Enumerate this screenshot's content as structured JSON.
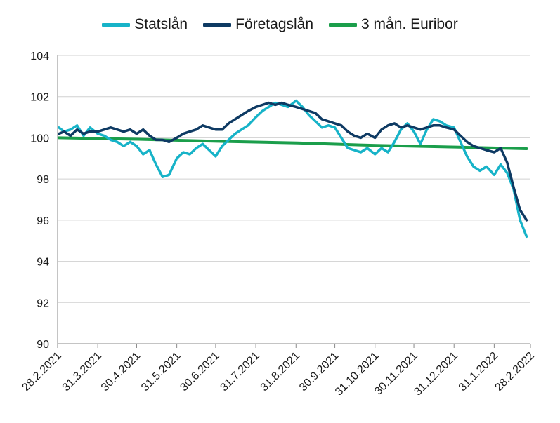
{
  "chart_data": {
    "type": "line",
    "title": "",
    "xlabel": "",
    "ylabel": "",
    "ylim": [
      90,
      104
    ],
    "xlim": [
      "28.2.2021",
      "28.2.2022"
    ],
    "grid": "horizontal",
    "legend_position": "top-center",
    "yticks": [
      "90",
      "92",
      "94",
      "96",
      "98",
      "100",
      "102",
      "104"
    ],
    "xticks": [
      "28.2.2021",
      "31.3.2021",
      "30.4.2021",
      "31.5.2021",
      "30.6.2021",
      "31.7.2021",
      "31.8.2021",
      "30.9.2021",
      "31.10.2021",
      "30.11.2021",
      "31.12.2021",
      "31.1.2022",
      "28.2.2022"
    ],
    "series": [
      {
        "name": "Statslån",
        "color": "#17b3c8",
        "x": [
          "2021-03-01",
          "2021-03-05",
          "2021-03-10",
          "2021-03-15",
          "2021-03-20",
          "2021-03-25",
          "2021-03-31",
          "2021-04-05",
          "2021-04-10",
          "2021-04-15",
          "2021-04-20",
          "2021-04-25",
          "2021-04-30",
          "2021-05-05",
          "2021-05-10",
          "2021-05-15",
          "2021-05-20",
          "2021-05-25",
          "2021-05-31",
          "2021-06-05",
          "2021-06-10",
          "2021-06-15",
          "2021-06-20",
          "2021-06-25",
          "2021-06-30",
          "2021-07-05",
          "2021-07-10",
          "2021-07-15",
          "2021-07-20",
          "2021-07-25",
          "2021-07-31",
          "2021-08-05",
          "2021-08-10",
          "2021-08-15",
          "2021-08-20",
          "2021-08-25",
          "2021-08-31",
          "2021-09-05",
          "2021-09-10",
          "2021-09-15",
          "2021-09-20",
          "2021-09-25",
          "2021-09-30",
          "2021-10-05",
          "2021-10-10",
          "2021-10-15",
          "2021-10-20",
          "2021-10-25",
          "2021-10-31",
          "2021-11-05",
          "2021-11-10",
          "2021-11-15",
          "2021-11-20",
          "2021-11-25",
          "2021-11-30",
          "2021-12-05",
          "2021-12-10",
          "2021-12-15",
          "2021-12-20",
          "2021-12-25",
          "2021-12-31",
          "2022-01-05",
          "2022-01-10",
          "2022-01-15",
          "2022-01-20",
          "2022-01-25",
          "2022-01-31",
          "2022-02-05",
          "2022-02-10",
          "2022-02-15",
          "2022-02-20",
          "2022-02-25"
        ],
        "values": [
          100.5,
          100.3,
          100.4,
          100.6,
          100.1,
          100.5,
          100.2,
          100.1,
          99.9,
          99.8,
          99.6,
          99.8,
          99.6,
          99.2,
          99.4,
          98.7,
          98.1,
          98.2,
          99.0,
          99.3,
          99.2,
          99.5,
          99.7,
          99.4,
          99.1,
          99.6,
          99.9,
          100.2,
          100.4,
          100.6,
          101.0,
          101.3,
          101.5,
          101.7,
          101.6,
          101.5,
          101.8,
          101.5,
          101.1,
          100.8,
          100.5,
          100.6,
          100.5,
          100.0,
          99.5,
          99.4,
          99.3,
          99.5,
          99.2,
          99.5,
          99.3,
          99.8,
          100.4,
          100.7,
          100.3,
          99.7,
          100.4,
          100.9,
          100.8,
          100.6,
          100.5,
          99.8,
          99.1,
          98.6,
          98.4,
          98.6,
          98.2,
          98.7,
          98.3,
          97.5,
          96.0,
          95.2
        ],
        "note": ""
      },
      {
        "name": "Företagslån",
        "color": "#0e3a63",
        "x": [
          "2021-03-01",
          "2021-03-05",
          "2021-03-10",
          "2021-03-15",
          "2021-03-20",
          "2021-03-25",
          "2021-03-31",
          "2021-04-05",
          "2021-04-10",
          "2021-04-15",
          "2021-04-20",
          "2021-04-25",
          "2021-04-30",
          "2021-05-05",
          "2021-05-10",
          "2021-05-15",
          "2021-05-20",
          "2021-05-25",
          "2021-05-31",
          "2021-06-05",
          "2021-06-10",
          "2021-06-15",
          "2021-06-20",
          "2021-06-25",
          "2021-06-30",
          "2021-07-05",
          "2021-07-10",
          "2021-07-15",
          "2021-07-20",
          "2021-07-25",
          "2021-07-31",
          "2021-08-05",
          "2021-08-10",
          "2021-08-15",
          "2021-08-20",
          "2021-08-25",
          "2021-08-31",
          "2021-09-05",
          "2021-09-10",
          "2021-09-15",
          "2021-09-20",
          "2021-09-25",
          "2021-09-30",
          "2021-10-05",
          "2021-10-10",
          "2021-10-15",
          "2021-10-20",
          "2021-10-25",
          "2021-10-31",
          "2021-11-05",
          "2021-11-10",
          "2021-11-15",
          "2021-11-20",
          "2021-11-25",
          "2021-11-30",
          "2021-12-05",
          "2021-12-10",
          "2021-12-15",
          "2021-12-20",
          "2021-12-25",
          "2021-12-31",
          "2022-01-05",
          "2022-01-10",
          "2022-01-15",
          "2022-01-20",
          "2022-01-25",
          "2022-01-31",
          "2022-02-05",
          "2022-02-10",
          "2022-02-15",
          "2022-02-20",
          "2022-02-25"
        ],
        "values": [
          100.2,
          100.3,
          100.1,
          100.4,
          100.2,
          100.3,
          100.3,
          100.4,
          100.5,
          100.4,
          100.3,
          100.4,
          100.2,
          100.4,
          100.1,
          99.9,
          99.9,
          99.8,
          100.0,
          100.2,
          100.3,
          100.4,
          100.6,
          100.5,
          100.4,
          100.4,
          100.7,
          100.9,
          101.1,
          101.3,
          101.5,
          101.6,
          101.7,
          101.6,
          101.7,
          101.6,
          101.5,
          101.4,
          101.3,
          101.2,
          100.9,
          100.8,
          100.7,
          100.6,
          100.3,
          100.1,
          100.0,
          100.2,
          100.0,
          100.4,
          100.6,
          100.7,
          100.5,
          100.6,
          100.5,
          100.4,
          100.5,
          100.6,
          100.6,
          100.5,
          100.4,
          100.1,
          99.8,
          99.6,
          99.5,
          99.4,
          99.3,
          99.5,
          98.8,
          97.6,
          96.5,
          96.0
        ],
        "note": ""
      },
      {
        "name": "3 mån. Euribor",
        "color": "#1b9e4b",
        "x": [
          "2021-03-01",
          "2021-05-01",
          "2021-07-01",
          "2021-09-01",
          "2021-11-01",
          "2022-01-01",
          "2022-02-25"
        ],
        "values": [
          100.0,
          99.93,
          99.83,
          99.75,
          99.63,
          99.55,
          99.47
        ],
        "note": ""
      }
    ]
  }
}
